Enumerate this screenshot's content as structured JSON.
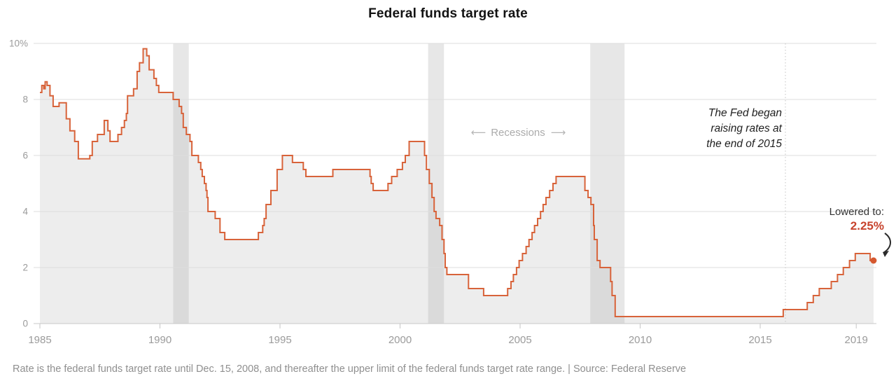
{
  "title": "Federal funds target rate",
  "footer": "Rate is the federal funds target rate until Dec. 15, 2008, and thereafter the upper limit of the federal funds target rate range. | Source: Federal Reserve",
  "annotations": {
    "recessions_label": "Recessions",
    "arrow_left": "⟵",
    "arrow_right": "⟶",
    "fed_note_lines": {
      "0": "The Fed began",
      "1": "raising rates at",
      "2": "the end of 2015"
    },
    "lowered_label": "Lowered to:",
    "lowered_value": "2.25%"
  },
  "colors": {
    "line": "#d8633a",
    "dot": "#d5582f",
    "value_text": "#c7432d",
    "area_fill": "#ededed",
    "recession_band": "rgba(168,168,168,0.28)",
    "grid": "#dddddd",
    "baseline": "#c8c8c8",
    "tick": "#c6c6c6",
    "dotted_line": "#c4c4c4",
    "axis_text": "#9b9b9b"
  },
  "chart_data": {
    "type": "line",
    "subtype": "step-after",
    "title": "Federal funds target rate",
    "xlabel": "",
    "ylabel": "percent",
    "xlim": [
      1984.95,
      2020.1
    ],
    "ylim": [
      0,
      10
    ],
    "grid": true,
    "x_ticks": [
      1985,
      1990,
      1995,
      2000,
      2005,
      2010,
      2015,
      2019
    ],
    "y_ticks": [
      {
        "value": 10,
        "label": "10%"
      },
      {
        "value": 8,
        "label": "8"
      },
      {
        "value": 6,
        "label": "6"
      },
      {
        "value": 4,
        "label": "4"
      },
      {
        "value": 2,
        "label": "2"
      },
      {
        "value": 0,
        "label": "0"
      }
    ],
    "recession_bands": [
      {
        "start": 1990.55,
        "end": 1991.2
      },
      {
        "start": 2001.17,
        "end": 2001.83
      },
      {
        "start": 2007.92,
        "end": 2009.35
      }
    ],
    "dotted_line_x": 2016.05,
    "series": [
      {
        "name": "Federal funds target rate (upper limit after Dec. 15, 2008)",
        "points": [
          [
            1985.0,
            8.25
          ],
          [
            1985.08,
            8.5
          ],
          [
            1985.16,
            8.38
          ],
          [
            1985.22,
            8.63
          ],
          [
            1985.3,
            8.5
          ],
          [
            1985.42,
            8.13
          ],
          [
            1985.55,
            7.75
          ],
          [
            1985.8,
            7.88
          ],
          [
            1986.1,
            7.31
          ],
          [
            1986.25,
            6.88
          ],
          [
            1986.45,
            6.5
          ],
          [
            1986.6,
            5.88
          ],
          [
            1987.08,
            6.0
          ],
          [
            1987.18,
            6.5
          ],
          [
            1987.4,
            6.75
          ],
          [
            1987.68,
            7.25
          ],
          [
            1987.83,
            6.88
          ],
          [
            1987.92,
            6.5
          ],
          [
            1988.25,
            6.75
          ],
          [
            1988.4,
            7.0
          ],
          [
            1988.52,
            7.25
          ],
          [
            1988.6,
            7.5
          ],
          [
            1988.65,
            8.13
          ],
          [
            1988.9,
            8.38
          ],
          [
            1989.05,
            9.0
          ],
          [
            1989.15,
            9.31
          ],
          [
            1989.3,
            9.81
          ],
          [
            1989.45,
            9.56
          ],
          [
            1989.55,
            9.06
          ],
          [
            1989.75,
            8.75
          ],
          [
            1989.85,
            8.5
          ],
          [
            1989.95,
            8.25
          ],
          [
            1990.55,
            8.0
          ],
          [
            1990.8,
            7.75
          ],
          [
            1990.9,
            7.5
          ],
          [
            1990.97,
            7.0
          ],
          [
            1991.1,
            6.75
          ],
          [
            1991.25,
            6.5
          ],
          [
            1991.33,
            6.0
          ],
          [
            1991.6,
            5.75
          ],
          [
            1991.7,
            5.5
          ],
          [
            1991.76,
            5.25
          ],
          [
            1991.85,
            5.0
          ],
          [
            1991.92,
            4.75
          ],
          [
            1991.96,
            4.5
          ],
          [
            1992.0,
            4.0
          ],
          [
            1992.3,
            3.75
          ],
          [
            1992.5,
            3.25
          ],
          [
            1992.7,
            3.0
          ],
          [
            1994.1,
            3.25
          ],
          [
            1994.28,
            3.5
          ],
          [
            1994.34,
            3.75
          ],
          [
            1994.42,
            4.25
          ],
          [
            1994.62,
            4.75
          ],
          [
            1994.88,
            5.5
          ],
          [
            1995.1,
            6.0
          ],
          [
            1995.52,
            5.75
          ],
          [
            1995.97,
            5.5
          ],
          [
            1996.08,
            5.25
          ],
          [
            1997.2,
            5.5
          ],
          [
            1998.75,
            5.25
          ],
          [
            1998.8,
            5.0
          ],
          [
            1998.88,
            4.75
          ],
          [
            1999.5,
            5.0
          ],
          [
            1999.65,
            5.25
          ],
          [
            1999.88,
            5.5
          ],
          [
            2000.1,
            5.75
          ],
          [
            2000.22,
            6.0
          ],
          [
            2000.38,
            6.5
          ],
          [
            2001.02,
            6.0
          ],
          [
            2001.1,
            5.5
          ],
          [
            2001.22,
            5.0
          ],
          [
            2001.33,
            4.5
          ],
          [
            2001.42,
            4.0
          ],
          [
            2001.5,
            3.75
          ],
          [
            2001.65,
            3.5
          ],
          [
            2001.75,
            3.0
          ],
          [
            2001.83,
            2.5
          ],
          [
            2001.88,
            2.0
          ],
          [
            2001.95,
            1.75
          ],
          [
            2002.85,
            1.25
          ],
          [
            2003.48,
            1.0
          ],
          [
            2004.48,
            1.25
          ],
          [
            2004.62,
            1.5
          ],
          [
            2004.72,
            1.75
          ],
          [
            2004.85,
            2.0
          ],
          [
            2004.96,
            2.25
          ],
          [
            2005.1,
            2.5
          ],
          [
            2005.25,
            2.75
          ],
          [
            2005.37,
            3.0
          ],
          [
            2005.5,
            3.25
          ],
          [
            2005.6,
            3.5
          ],
          [
            2005.73,
            3.75
          ],
          [
            2005.85,
            4.0
          ],
          [
            2005.96,
            4.25
          ],
          [
            2006.08,
            4.5
          ],
          [
            2006.23,
            4.75
          ],
          [
            2006.37,
            5.0
          ],
          [
            2006.5,
            5.25
          ],
          [
            2007.7,
            4.75
          ],
          [
            2007.83,
            4.5
          ],
          [
            2007.95,
            4.25
          ],
          [
            2008.06,
            3.5
          ],
          [
            2008.09,
            3.0
          ],
          [
            2008.21,
            2.25
          ],
          [
            2008.33,
            2.0
          ],
          [
            2008.77,
            1.5
          ],
          [
            2008.83,
            1.0
          ],
          [
            2008.96,
            0.25
          ],
          [
            2015.96,
            0.5
          ],
          [
            2016.96,
            0.75
          ],
          [
            2017.21,
            1.0
          ],
          [
            2017.46,
            1.25
          ],
          [
            2017.96,
            1.5
          ],
          [
            2018.22,
            1.75
          ],
          [
            2018.46,
            2.0
          ],
          [
            2018.72,
            2.25
          ],
          [
            2018.96,
            2.5
          ],
          [
            2019.58,
            2.25
          ]
        ]
      }
    ],
    "end_point": {
      "x": 2019.72,
      "value": 2.25
    },
    "legend": null
  }
}
